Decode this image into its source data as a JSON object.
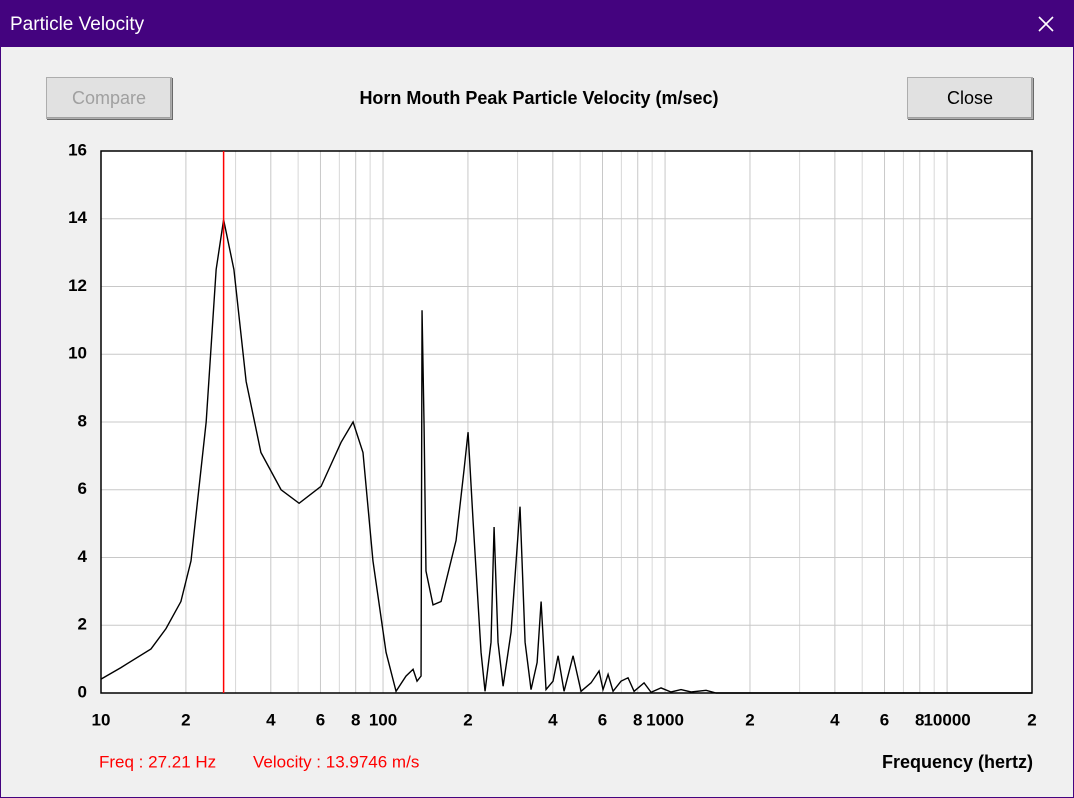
{
  "window": {
    "title": "Particle Velocity"
  },
  "buttons": {
    "compare": "Compare",
    "close": "Close"
  },
  "status": {
    "freq": "Freq : 27.21 Hz",
    "velocity": "Velocity : 13.9746 m/s"
  },
  "chart_data": {
    "type": "line",
    "title": "Horn Mouth Peak Particle Velocity (m/sec)",
    "x_label": "Frequency (hertz)",
    "x_scale": "log",
    "grid": true,
    "xlim": [
      10,
      20000
    ],
    "ylim": [
      0,
      16
    ],
    "yticks": [
      0,
      2,
      4,
      6,
      8,
      10,
      12,
      14,
      16
    ],
    "xticks": [
      10,
      {
        "value": 20,
        "label": "2"
      },
      {
        "value": 40,
        "label": "4"
      },
      {
        "value": 60,
        "label": "6"
      },
      {
        "value": 80,
        "label": "8"
      },
      100,
      {
        "value": 200,
        "label": "2"
      },
      {
        "value": 400,
        "label": "4"
      },
      {
        "value": 600,
        "label": "6"
      },
      {
        "value": 800,
        "label": "8"
      },
      1000,
      {
        "value": 2000,
        "label": "2"
      },
      {
        "value": 4000,
        "label": "4"
      },
      {
        "value": 6000,
        "label": "6"
      },
      {
        "value": 8000,
        "label": "8"
      },
      10000,
      {
        "value": 20000,
        "label": "2"
      }
    ],
    "xminorticks": [
      30,
      50,
      70,
      90,
      300,
      500,
      700,
      900,
      3000,
      5000,
      7000,
      9000
    ],
    "marker_x": 27.21,
    "marker_color": "#ff0000",
    "series": [
      {
        "color": "#000000",
        "x": [
          10,
          11.77,
          15.04,
          17.0,
          19.2,
          20.85,
          23.6,
          25.6,
          27.21,
          29.6,
          32.7,
          36.9,
          43.5,
          50.4,
          60.3,
          71,
          78.3,
          84.9,
          92.1,
          102.5,
          111.2,
          120.6,
          127.8,
          132,
          136.4,
          137.5,
          139.8,
          142,
          150.4,
          160.6,
          181.5,
          193.8,
          200.2,
          208.5,
          222.6,
          230,
          241.5,
          247.6,
          255.7,
          266.5,
          284.4,
          306,
          318.9,
          334.8,
          351.8,
          363.5,
          378.4,
          400.6,
          417.5,
          438.4,
          471.8,
          503.6,
          546.6,
          583.4,
          602.6,
          628,
          654,
          698,
          739,
          776.5,
          842.4,
          892.1,
          967.8,
          1050,
          1139,
          1237,
          1398,
          1517,
          1714,
          20000
        ],
        "values": [
          0.41,
          0.75,
          1.3,
          1.9,
          2.7,
          3.9,
          8,
          12.5,
          13.97,
          12.5,
          9.2,
          7.1,
          6.0,
          5.6,
          6.1,
          7.4,
          8.0,
          7.1,
          3.9,
          1.2,
          0.05,
          0.5,
          0.7,
          0.35,
          0.5,
          11.3,
          7.9,
          3.6,
          2.6,
          2.7,
          4.5,
          6.6,
          7.7,
          5.1,
          1.2,
          0.05,
          1.5,
          4.9,
          1.5,
          0.2,
          1.8,
          5.5,
          1.5,
          0.1,
          0.9,
          2.7,
          0.1,
          0.35,
          1.1,
          0.05,
          1.1,
          0.05,
          0.3,
          0.65,
          0.1,
          0.55,
          0.05,
          0.35,
          0.45,
          0.05,
          0.3,
          0.02,
          0.15,
          0.03,
          0.1,
          0.03,
          0.08,
          0,
          0,
          0
        ]
      }
    ]
  }
}
